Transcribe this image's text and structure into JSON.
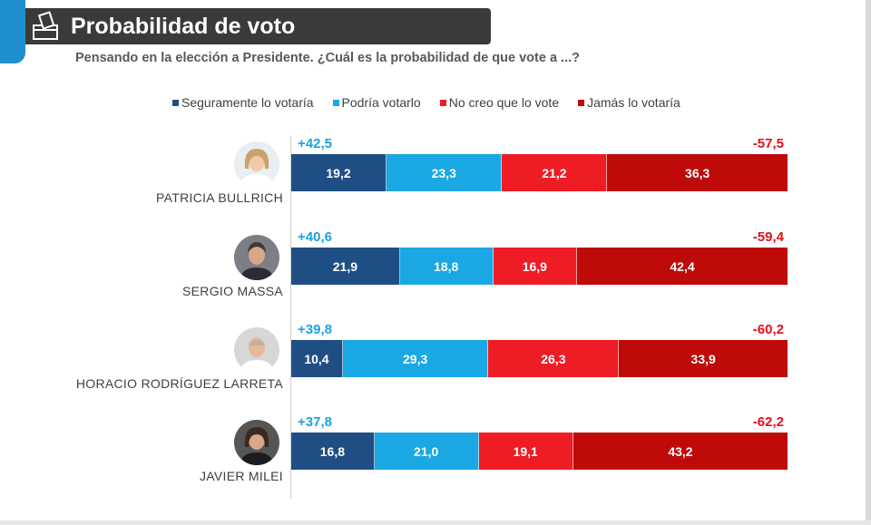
{
  "header": {
    "title": "Probabilidad de voto",
    "subtitle": "Pensando en la elección a Presidente. ¿Cuál es la probabilidad de que vote a ...?"
  },
  "colors": {
    "seguramente": "#1f4e85",
    "podria": "#19a8e3",
    "no_creo": "#ee1c25",
    "jamas": "#bf0a0a",
    "positive_total": "#1aa3e0",
    "negative_total": "#e30f1b"
  },
  "chart_data": {
    "type": "bar",
    "orientation": "horizontal",
    "stacked": true,
    "title": "Probabilidad de voto",
    "subtitle": "Pensando en la elección a Presidente. ¿Cuál es la probabilidad de que vote a ...?",
    "legend": [
      "Seguramente lo votaría",
      "Podría votarlo",
      "No creo que lo vote",
      "Jamás lo votaría"
    ],
    "legend_position": "top",
    "categories": [
      "PATRICIA BULLRICH",
      "SERGIO MASSA",
      "HORACIO RODRÍGUEZ LARRETA",
      "JAVIER MILEI"
    ],
    "series": [
      {
        "name": "Seguramente lo votaría",
        "values": [
          19.2,
          21.9,
          10.4,
          16.8
        ],
        "labels": [
          "19,2",
          "21,9",
          "10,4",
          "16,8"
        ]
      },
      {
        "name": "Podría votarlo",
        "values": [
          23.3,
          18.8,
          29.3,
          21.0
        ],
        "labels": [
          "23,3",
          "18,8",
          "29,3",
          "21,0"
        ]
      },
      {
        "name": "No creo que lo vote",
        "values": [
          21.2,
          16.9,
          26.3,
          19.1
        ],
        "labels": [
          "21,2",
          "16,9",
          "26,3",
          "19,1"
        ]
      },
      {
        "name": "Jamás lo votaría",
        "values": [
          36.3,
          42.4,
          33.9,
          43.2
        ],
        "labels": [
          "36,3",
          "42,4",
          "33,9",
          "43,2"
        ]
      }
    ],
    "positive_totals": [
      "+42,5",
      "+40,6",
      "+39,8",
      "+37,8"
    ],
    "negative_totals": [
      "-57,5",
      "-59,4",
      "-60,2",
      "-62,2"
    ],
    "grid": false
  }
}
